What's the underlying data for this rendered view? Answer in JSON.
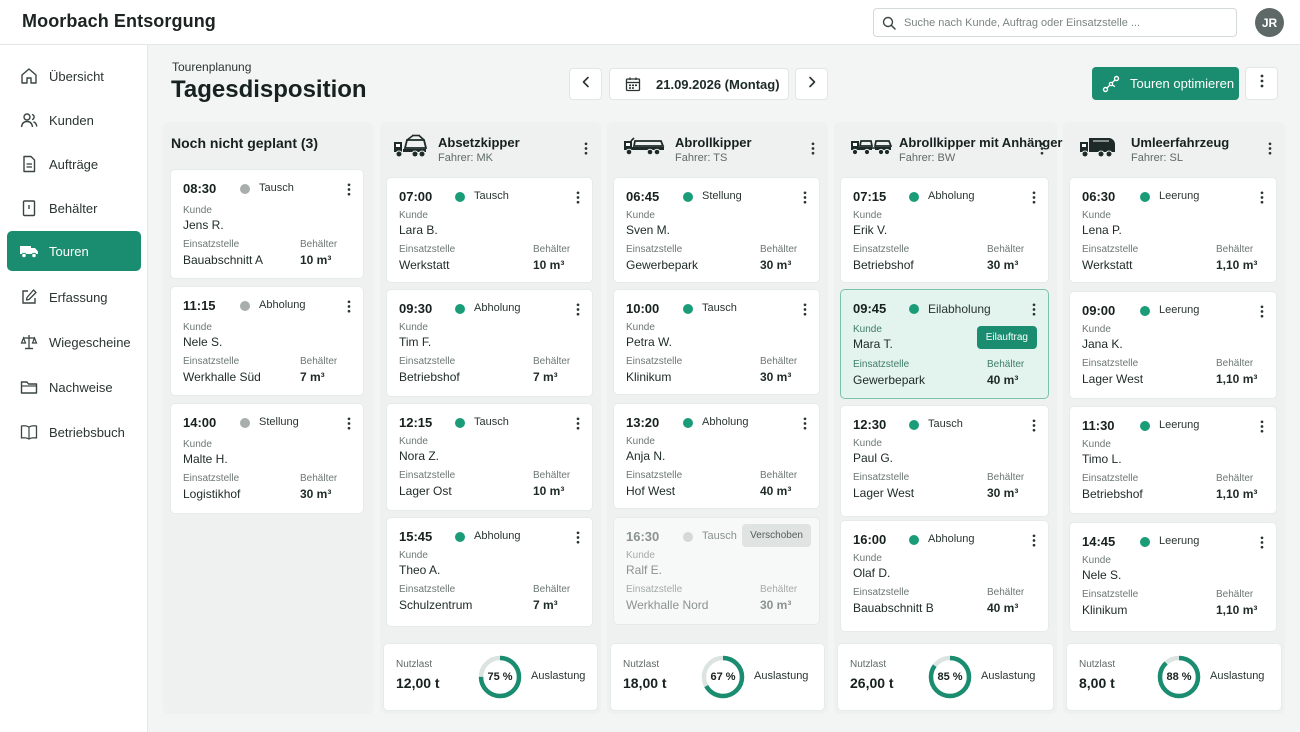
{
  "app": {
    "title": "Moorbach Entsorgung",
    "user_initials": "JR"
  },
  "search": {
    "placeholder": "Suche nach Kunde, Auftrag oder Einsatzstelle ..."
  },
  "sidebar": {
    "items": [
      {
        "label": "Übersicht",
        "icon": "home-icon"
      },
      {
        "label": "Kunden",
        "icon": "users-icon"
      },
      {
        "label": "Aufträge",
        "icon": "document-icon"
      },
      {
        "label": "Behälter",
        "icon": "container-icon"
      },
      {
        "label": "Touren",
        "icon": "truck-icon",
        "active": true
      },
      {
        "label": "Erfassung",
        "icon": "edit-icon"
      },
      {
        "label": "Wiegescheine",
        "icon": "scale-icon"
      },
      {
        "label": "Nachweise",
        "icon": "folder-icon"
      },
      {
        "label": "Betriebsbuch",
        "icon": "book-icon"
      }
    ]
  },
  "header": {
    "breadcrumb": "Tourenplanung",
    "title": "Tagesdisposition",
    "date": "21.09.2026 (Montag)",
    "optimize_label": "Touren optimieren"
  },
  "labels": {
    "kunde": "Kunde",
    "einsatzstelle": "Einsatzstelle",
    "behaelter": "Behälter",
    "nutzlast": "Nutzlast",
    "auslastung": "Auslastung"
  },
  "colors": {
    "accent": "#1a8c6f",
    "status_planned": "#1a9c78",
    "status_unplanned": "#a7aeac",
    "ring_track": "#dbe4e1"
  },
  "unplanned": {
    "title": "Noch nicht geplant (3)",
    "cards": [
      {
        "time": "08:30",
        "type": "Tausch",
        "kunde": "Jens R.",
        "einsatzstelle": "Bauabschnitt A",
        "behaelter": "10 m³"
      },
      {
        "time": "11:15",
        "type": "Abholung",
        "kunde": "Nele S.",
        "einsatzstelle": "Werkhalle Süd",
        "behaelter": "7 m³"
      },
      {
        "time": "14:00",
        "type": "Stellung",
        "kunde": "Malte H.",
        "einsatzstelle": "Logistikhof",
        "behaelter": "30 m³"
      }
    ]
  },
  "vehicles": [
    {
      "name": "Absetzkipper",
      "driver": "Fahrer: MK",
      "icon": "skip-loader-truck-icon",
      "nutzlast": "12,00 t",
      "auslastung_pct": 75,
      "auslastung_text": "75 %",
      "cards": [
        {
          "time": "07:00",
          "type": "Tausch",
          "kunde": "Lara B.",
          "einsatzstelle": "Werkstatt",
          "behaelter": "10 m³"
        },
        {
          "time": "09:30",
          "type": "Abholung",
          "kunde": "Tim F.",
          "einsatzstelle": "Betriebshof",
          "behaelter": "7 m³"
        },
        {
          "time": "12:15",
          "type": "Tausch",
          "kunde": "Nora Z.",
          "einsatzstelle": "Lager Ost",
          "behaelter": "10 m³"
        },
        {
          "time": "15:45",
          "type": "Abholung",
          "kunde": "Theo A.",
          "einsatzstelle": "Schulzentrum",
          "behaelter": "7 m³"
        }
      ]
    },
    {
      "name": "Abrollkipper",
      "driver": "Fahrer: TS",
      "icon": "roll-off-truck-icon",
      "nutzlast": "18,00 t",
      "auslastung_pct": 67,
      "auslastung_text": "67 %",
      "cards": [
        {
          "time": "06:45",
          "type": "Stellung",
          "kunde": "Sven M.",
          "einsatzstelle": "Gewerbepark",
          "behaelter": "30 m³"
        },
        {
          "time": "10:00",
          "type": "Tausch",
          "kunde": "Petra W.",
          "einsatzstelle": "Klinikum",
          "behaelter": "30 m³"
        },
        {
          "time": "13:20",
          "type": "Abholung",
          "kunde": "Anja N.",
          "einsatzstelle": "Hof West",
          "behaelter": "40 m³"
        },
        {
          "time": "16:30",
          "type": "Tausch",
          "kunde": "Ralf E.",
          "einsatzstelle": "Werkhalle Nord",
          "behaelter": "30 m³",
          "tag": "Verschoben",
          "muted": true
        }
      ]
    },
    {
      "name": "Abrollkipper mit Anhänger",
      "driver": "Fahrer: BW",
      "icon": "roll-off-trailer-truck-icon",
      "nutzlast": "26,00 t",
      "auslastung_pct": 85,
      "auslastung_text": "85 %",
      "cards": [
        {
          "time": "07:15",
          "type": "Abholung",
          "kunde": "Erik V.",
          "einsatzstelle": "Betriebshof",
          "behaelter": "30 m³"
        },
        {
          "time": "09:45",
          "type": "Eilabholung",
          "kunde": "Mara T.",
          "einsatzstelle": "Gewerbepark",
          "behaelter": "40 m³",
          "tag": "Eilauftrag",
          "highlight": true
        },
        {
          "time": "12:30",
          "type": "Tausch",
          "kunde": "Paul G.",
          "einsatzstelle": "Lager West",
          "behaelter": "30 m³"
        },
        {
          "time": "16:00",
          "type": "Abholung",
          "kunde": "Olaf D.",
          "einsatzstelle": "Bauabschnitt B",
          "behaelter": "40 m³"
        }
      ]
    },
    {
      "name": "Umleerfahrzeug",
      "driver": "Fahrer: SL",
      "icon": "refuse-truck-icon",
      "nutzlast": "8,00 t",
      "auslastung_pct": 88,
      "auslastung_text": "88 %",
      "cards": [
        {
          "time": "06:30",
          "type": "Leerung",
          "kunde": "Lena P.",
          "einsatzstelle": "Werkstatt",
          "behaelter": "1,10 m³"
        },
        {
          "time": "09:00",
          "type": "Leerung",
          "kunde": "Jana K.",
          "einsatzstelle": "Lager West",
          "behaelter": "1,10 m³"
        },
        {
          "time": "11:30",
          "type": "Leerung",
          "kunde": "Timo L.",
          "einsatzstelle": "Betriebshof",
          "behaelter": "1,10 m³"
        },
        {
          "time": "14:45",
          "type": "Leerung",
          "kunde": "Nele S.",
          "einsatzstelle": "Klinikum",
          "behaelter": "1,10 m³"
        }
      ]
    }
  ]
}
